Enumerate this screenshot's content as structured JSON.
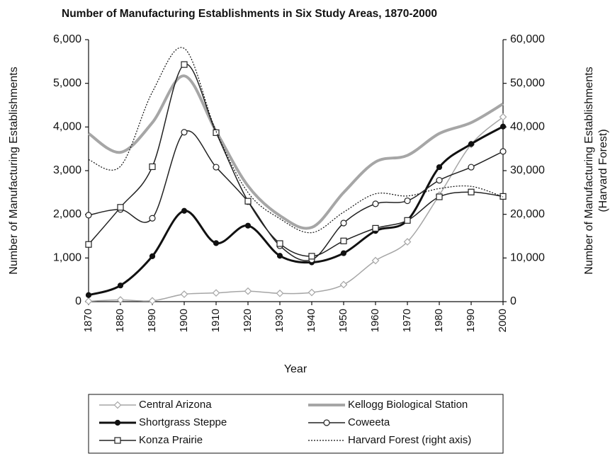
{
  "chart_data": {
    "type": "line",
    "title": "Number of Manufacturing Establishments in Six Study Areas, 1870-2000",
    "xlabel": "Year",
    "ylabel": "Number of Manufacturing Establishments",
    "y2label": [
      "Number of Manufacturing Establishments",
      "(Harvard Forest)"
    ],
    "x": [
      1870,
      1880,
      1890,
      1900,
      1910,
      1920,
      1930,
      1940,
      1950,
      1960,
      1970,
      1980,
      1990,
      2000
    ],
    "xlim": [
      1870,
      2000
    ],
    "ylim": [
      0,
      6000
    ],
    "yticks": [
      0,
      {
        "value": 1000,
        "label": "1,000"
      },
      {
        "value": 2000,
        "label": "2,000"
      },
      {
        "value": 3000,
        "label": "3,000"
      },
      {
        "value": 4000,
        "label": "4,000"
      },
      {
        "value": 5000,
        "label": "5,000"
      },
      {
        "value": 6000,
        "label": "6,000"
      }
    ],
    "y2lim": [
      0,
      60000
    ],
    "y2ticks": [
      0,
      {
        "value": 10000,
        "label": "10,000"
      },
      {
        "value": 20000,
        "label": "20,000"
      },
      {
        "value": 30000,
        "label": "30,000"
      },
      {
        "value": 40000,
        "label": "40,000"
      },
      {
        "value": 50000,
        "label": "50,000"
      },
      {
        "value": 60000,
        "label": "60,000"
      }
    ],
    "smooth": true,
    "series": [
      {
        "name": "Central Arizona",
        "color": "#a6a6a6",
        "marker": "diamond",
        "linestyle": "solid",
        "linewidth": 1.5,
        "values": [
          10,
          40,
          20,
          170,
          200,
          240,
          190,
          210,
          390,
          940,
          1370,
          2440,
          3600,
          4230
        ]
      },
      {
        "name": "Kellogg Biological Station",
        "color": "#a6a6a6",
        "marker": "none",
        "linestyle": "solid",
        "linewidth": 4,
        "values": [
          3850,
          3420,
          4100,
          5170,
          3900,
          2650,
          1970,
          1700,
          2500,
          3200,
          3350,
          3850,
          4100,
          4530
        ]
      },
      {
        "name": "Shortgrass Steppe",
        "color": "#111111",
        "marker": "filled-circle",
        "linestyle": "solid",
        "linewidth": 3,
        "values": [
          150,
          370,
          1040,
          2080,
          1340,
          1740,
          1050,
          900,
          1110,
          1620,
          1860,
          3080,
          3610,
          4010
        ]
      },
      {
        "name": "Coweeta",
        "color": "#222222",
        "marker": "circle",
        "linestyle": "solid",
        "linewidth": 1.5,
        "values": [
          1980,
          2110,
          1910,
          3880,
          3080,
          2290,
          1280,
          960,
          1800,
          2240,
          2310,
          2780,
          3080,
          3440
        ]
      },
      {
        "name": "Konza Prairie",
        "color": "#222222",
        "marker": "square",
        "linestyle": "solid",
        "linewidth": 1.5,
        "values": [
          1310,
          2160,
          3090,
          5430,
          3870,
          2300,
          1330,
          1040,
          1390,
          1680,
          1860,
          2400,
          2510,
          2410
        ]
      },
      {
        "name": "Harvard Forest (right axis)",
        "color": "#111111",
        "marker": "none",
        "linestyle": "dotted",
        "linewidth": 1.2,
        "axis": "y2",
        "values": [
          32500,
          31000,
          48000,
          58000,
          39000,
          25000,
          19000,
          15800,
          20500,
          24700,
          24200,
          25900,
          26400,
          24000
        ]
      }
    ]
  }
}
